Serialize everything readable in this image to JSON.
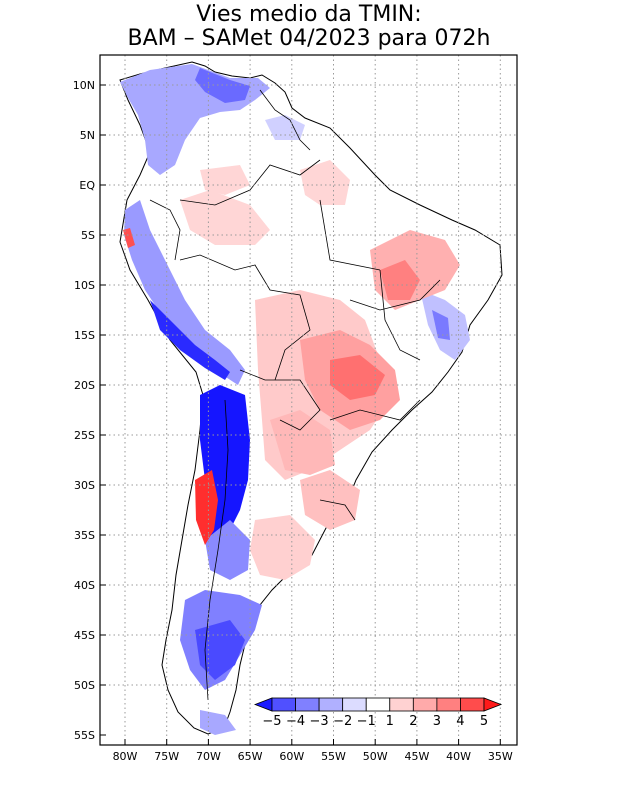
{
  "title_line1": "Vies medio da TMIN:",
  "title_line2": "BAM – SAMet 04/2023  para 072h",
  "lat_labels": [
    "10N",
    "5N",
    "EQ",
    "5S",
    "10S",
    "15S",
    "20S",
    "25S",
    "30S",
    "35S",
    "40S",
    "45S",
    "50S",
    "55S"
  ],
  "lon_labels": [
    "80W",
    "75W",
    "70W",
    "65W",
    "60W",
    "55W",
    "50W",
    "45W",
    "40W",
    "35W"
  ],
  "colorbar": {
    "labels": [
      "-5",
      "-4",
      "-3",
      "-2",
      "-1",
      "1",
      "2",
      "3",
      "4",
      "5"
    ],
    "colors": [
      "#1a1aff",
      "#5050ff",
      "#8080ff",
      "#b0b0ff",
      "#dcdcff",
      "#ffffff",
      "#ffd2d2",
      "#ffaaaa",
      "#ff8080",
      "#ff4c4c",
      "#ff1a1a"
    ]
  },
  "map_colors": {
    "ocean": "#ffffff",
    "land": "#ffffff",
    "border": "#000000",
    "grid": "#9a9a9a"
  }
}
